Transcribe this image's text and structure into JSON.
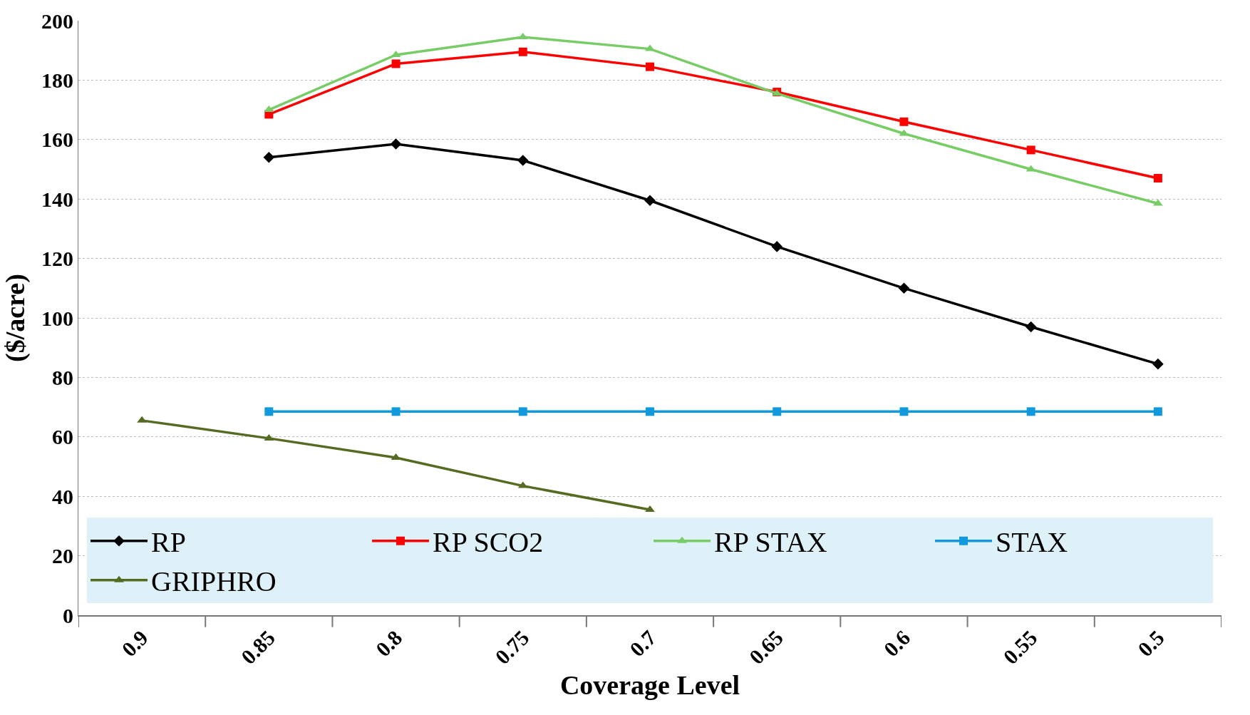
{
  "chart_data": {
    "type": "line",
    "xlabel": "Coverage Level",
    "ylabel": "($/acre)",
    "categories": [
      "0.9",
      "0.85",
      "0.8",
      "0.75",
      "0.7",
      "0.65",
      "0.6",
      "0.55",
      "0.5"
    ],
    "series": [
      {
        "name": "RP",
        "color": "#000000",
        "marker": "diamond",
        "values": [
          null,
          154,
          158.5,
          153,
          139.5,
          124,
          110,
          97,
          84.5
        ]
      },
      {
        "name": "RP SCO2",
        "color": "#ff0000",
        "marker": "square",
        "values": [
          null,
          168.5,
          185.5,
          189.5,
          184.5,
          176,
          166,
          156.5,
          147
        ]
      },
      {
        "name": "RP STAX",
        "color": "#77cc66",
        "marker": "triangle",
        "values": [
          null,
          170,
          188.5,
          194.5,
          190.5,
          175.5,
          162,
          150,
          138.5
        ]
      },
      {
        "name": "STAX",
        "color": "#1199dd",
        "marker": "square",
        "values": [
          null,
          68.5,
          68.5,
          68.5,
          68.5,
          68.5,
          68.5,
          68.5,
          68.5
        ]
      },
      {
        "name": "GRIPHRO",
        "color": "#556b22",
        "marker": "triangle",
        "values": [
          65.5,
          59.5,
          53,
          43.5,
          35.5,
          null,
          null,
          null,
          null
        ]
      }
    ],
    "ylim": [
      0,
      200
    ],
    "yticks": [
      0,
      20,
      40,
      60,
      80,
      100,
      120,
      140,
      160,
      180,
      200
    ],
    "grid": "y",
    "legend": "bottom"
  }
}
